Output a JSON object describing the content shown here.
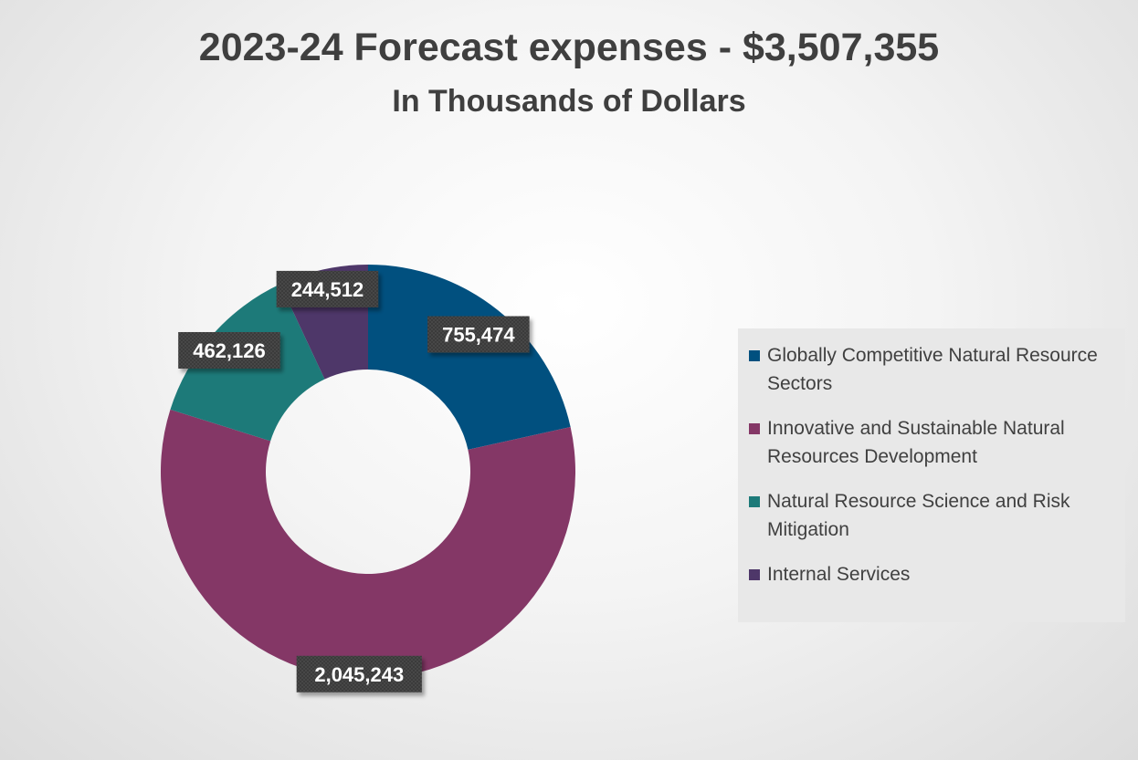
{
  "chart_data": {
    "type": "pie",
    "title": "2023-24 Forecast expenses - $3,507,355",
    "subtitle": "In Thousands of Dollars",
    "categories": [
      "Globally Competitive Natural Resource Sectors",
      "Innovative and Sustainable Natural Resources Development",
      "Natural Resource Science and Risk Mitigation",
      "Internal Services"
    ],
    "values": [
      755474,
      2045243,
      462126,
      244512
    ],
    "value_labels": [
      "755,474",
      "2,045,243",
      "462,126",
      "244,512"
    ],
    "colors": [
      "#01507f",
      "#843766",
      "#1d7a79",
      "#4e3769"
    ],
    "donut": true,
    "legend_position": "right"
  }
}
